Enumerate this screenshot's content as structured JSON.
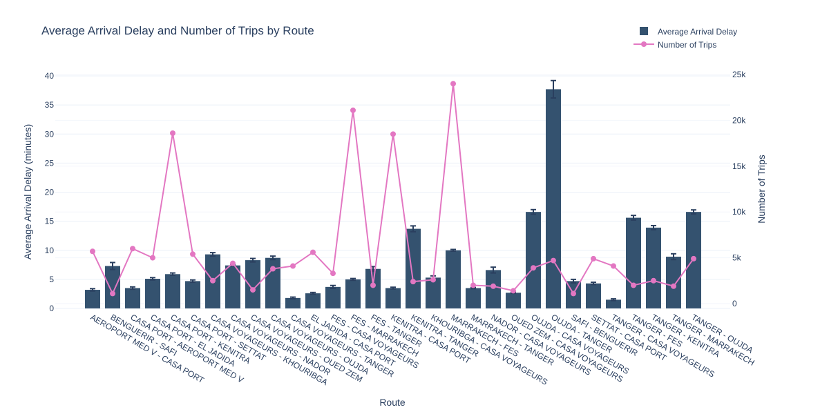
{
  "chart_data": {
    "type": "bar",
    "title": "Average Arrival Delay and Number of Trips by Route",
    "xlabel": "Route",
    "ylabel": "Average Arrival Delay (minutes)",
    "y2label": "Number of Trips",
    "ylim": [
      0,
      40
    ],
    "y2lim": [
      0,
      25000
    ],
    "y_ticks": [
      "0",
      "5",
      "10",
      "15",
      "20",
      "25",
      "30",
      "35",
      "40"
    ],
    "y2_ticks": [
      "0",
      "5k",
      "10k",
      "15k",
      "20k",
      "25k"
    ],
    "grid": true,
    "legend_position": "top-right",
    "colors": {
      "bar": "#34526f",
      "line": "#e377c2",
      "error": "#2a3f5f",
      "grid": "#ebf0f8"
    },
    "categories": [
      "AEROPORT MED V - CASA PORT",
      "BENGUERIR - SAFI",
      "CASA PORT - AEROPORT MED V",
      "CASA PORT - EL JADIDA",
      "CASA PORT - KENITRA",
      "CASA PORT - SETTAT",
      "CASA VOYAGEURS - KHOURIBGA",
      "CASA VOYAGEURS - NADOR",
      "CASA VOYAGEURS - OUED ZEM",
      "CASA VOYAGEURS - OUJDA",
      "CASA VOYAGEURS - TANGER",
      "EL JADIDA - CASA PORT",
      "FES - CASA VOYAGEURS",
      "FES - MARRAKECH",
      "FES - TANGER",
      "KENITRA - CASA PORT",
      "KENITRA - TANGER",
      "KHOURIBGA - CASA VOYAGEURS",
      "MARRAKECH - FES",
      "MARRAKECH - TANGER",
      "NADOR - CASA VOYAGEURS",
      "OUED ZEM - CASA VOYAGEURS",
      "OUJDA - CASA VOYAGEURS",
      "OUJDA - TANGER",
      "SAFI - BENGUERIR",
      "SETTAT - CASA PORT",
      "TANGER - CASA VOYAGEURS",
      "TANGER - FES",
      "TANGER - KENITRA",
      "TANGER - MARRAKECH",
      "TANGER - OUJDA"
    ],
    "series": [
      {
        "name": "Average Arrival Delay",
        "axis": "left",
        "type": "bar",
        "values": [
          3.2,
          7.3,
          3.5,
          5.1,
          5.9,
          4.7,
          9.3,
          7.4,
          8.3,
          8.7,
          1.8,
          2.6,
          3.7,
          5.0,
          6.8,
          3.5,
          13.7,
          5.3,
          10.0,
          3.5,
          6.6,
          2.7,
          16.6,
          37.7,
          4.7,
          4.3,
          1.5,
          15.6,
          13.9,
          8.9,
          16.6
        ],
        "errors": [
          0.2,
          0.6,
          0.2,
          0.2,
          0.2,
          0.2,
          0.3,
          0.1,
          0.3,
          0.3,
          0.15,
          0.15,
          0.25,
          0.15,
          0.4,
          0.15,
          0.5,
          0.3,
          0.15,
          0.1,
          0.5,
          0.1,
          0.4,
          1.5,
          0.3,
          0.2,
          0.15,
          0.4,
          0.35,
          0.5,
          0.35
        ]
      },
      {
        "name": "Number of Trips",
        "axis": "right",
        "type": "line",
        "values": [
          5700,
          1100,
          6000,
          5000,
          18600,
          5400,
          2500,
          4400,
          1500,
          3800,
          4100,
          5600,
          3300,
          21100,
          2000,
          18500,
          2400,
          2600,
          24000,
          2000,
          1900,
          1400,
          3900,
          4700,
          1100,
          4900,
          4100,
          2000,
          2500,
          1900,
          4900
        ]
      }
    ]
  }
}
